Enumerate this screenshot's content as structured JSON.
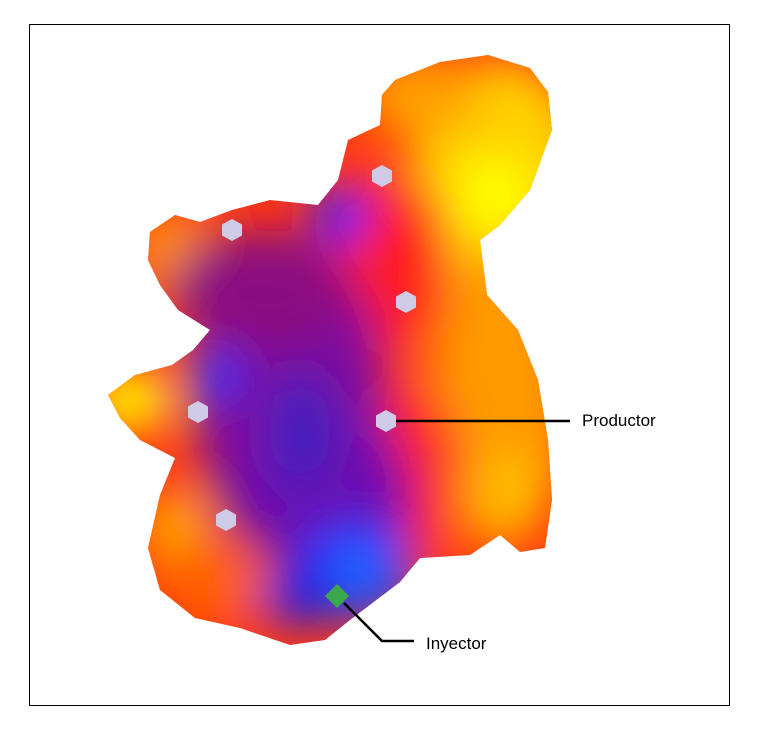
{
  "labels": {
    "productor": "Productor",
    "inyector": "Inyector"
  },
  "colors": {
    "low": "#1a1aff",
    "mid_low": "#7a0aa0",
    "mid": "#ff1a1a",
    "mid_high": "#ff8c00",
    "high": "#ffff00",
    "producer_marker": "#cfcbe6",
    "injector_marker": "#3aa84a",
    "leader_line": "#000000"
  },
  "legend_icons": {
    "producer": "hexagon-icon",
    "injector": "diamond-icon"
  }
}
